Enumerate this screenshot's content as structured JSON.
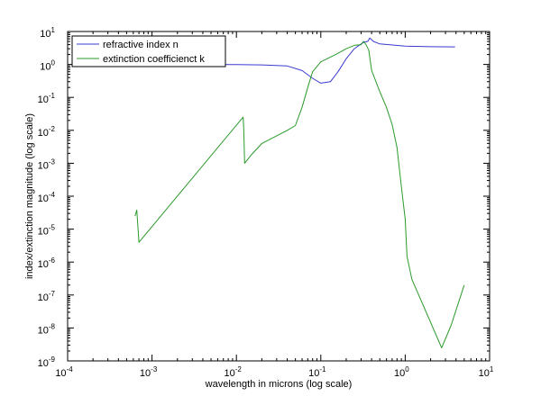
{
  "chart_data": {
    "type": "line",
    "title": "",
    "xlabel": "wavelength in microns (log scale)",
    "ylabel": "index/extinction magnitude (log scale)",
    "x_scale": "log",
    "y_scale": "log",
    "xlim": [
      0.0001,
      10
    ],
    "ylim": [
      1e-09,
      10
    ],
    "grid": false,
    "legend_position": "top-left",
    "x_ticks": [
      {
        "base": "10",
        "exp": "-4"
      },
      {
        "base": "10",
        "exp": "-3"
      },
      {
        "base": "10",
        "exp": "-2"
      },
      {
        "base": "10",
        "exp": "-1"
      },
      {
        "base": "10",
        "exp": "0"
      },
      {
        "base": "10",
        "exp": "1"
      }
    ],
    "y_ticks": [
      {
        "base": "10",
        "exp": "-9"
      },
      {
        "base": "10",
        "exp": "-8"
      },
      {
        "base": "10",
        "exp": "-7"
      },
      {
        "base": "10",
        "exp": "-6"
      },
      {
        "base": "10",
        "exp": "-5"
      },
      {
        "base": "10",
        "exp": "-4"
      },
      {
        "base": "10",
        "exp": "-3"
      },
      {
        "base": "10",
        "exp": "-2"
      },
      {
        "base": "10",
        "exp": "-1"
      },
      {
        "base": "10",
        "exp": "0"
      },
      {
        "base": "10",
        "exp": "1"
      }
    ],
    "series": [
      {
        "name": "refractive index n",
        "color": "#3a3ad0",
        "points": [
          [
            0.00063,
            1.0
          ],
          [
            0.001,
            1.0
          ],
          [
            0.005,
            1.0
          ],
          [
            0.01,
            0.99
          ],
          [
            0.02,
            0.97
          ],
          [
            0.04,
            0.9
          ],
          [
            0.06,
            0.65
          ],
          [
            0.08,
            0.38
          ],
          [
            0.1,
            0.27
          ],
          [
            0.13,
            0.3
          ],
          [
            0.16,
            0.6
          ],
          [
            0.2,
            1.5
          ],
          [
            0.25,
            3.0
          ],
          [
            0.3,
            4.2
          ],
          [
            0.33,
            4.8
          ],
          [
            0.36,
            5.0
          ],
          [
            0.38,
            6.3
          ],
          [
            0.42,
            5.0
          ],
          [
            0.5,
            4.2
          ],
          [
            1.0,
            3.6
          ],
          [
            2.0,
            3.45
          ],
          [
            3.9,
            3.4
          ]
        ]
      },
      {
        "name": "extinction coefficienct k",
        "color": "#2a9a2a",
        "points": [
          [
            0.00063,
            2.5e-05
          ],
          [
            0.00066,
            3.8e-05
          ],
          [
            0.0007,
            4e-06
          ],
          [
            0.012,
            0.025
          ],
          [
            0.0122,
            0.012
          ],
          [
            0.0125,
            0.001
          ],
          [
            0.015,
            0.0018
          ],
          [
            0.02,
            0.004
          ],
          [
            0.04,
            0.01
          ],
          [
            0.05,
            0.014
          ],
          [
            0.06,
            0.05
          ],
          [
            0.07,
            0.2
          ],
          [
            0.08,
            0.6
          ],
          [
            0.1,
            1.2
          ],
          [
            0.15,
            2.0
          ],
          [
            0.2,
            3.0
          ],
          [
            0.25,
            3.8
          ],
          [
            0.3,
            4.0
          ],
          [
            0.32,
            5.0
          ],
          [
            0.34,
            4.2
          ],
          [
            0.37,
            2.7
          ],
          [
            0.4,
            0.65
          ],
          [
            0.5,
            0.15
          ],
          [
            0.6,
            0.05
          ],
          [
            0.7,
            0.015
          ],
          [
            0.8,
            0.003
          ],
          [
            0.9,
            0.0002
          ],
          [
            1.0,
            2e-05
          ],
          [
            1.05,
            1.5e-06
          ],
          [
            1.2,
            3e-07
          ],
          [
            2.7,
            2.5e-09
          ],
          [
            3.5,
            1.2e-08
          ],
          [
            5.0,
            2e-07
          ]
        ]
      }
    ]
  }
}
